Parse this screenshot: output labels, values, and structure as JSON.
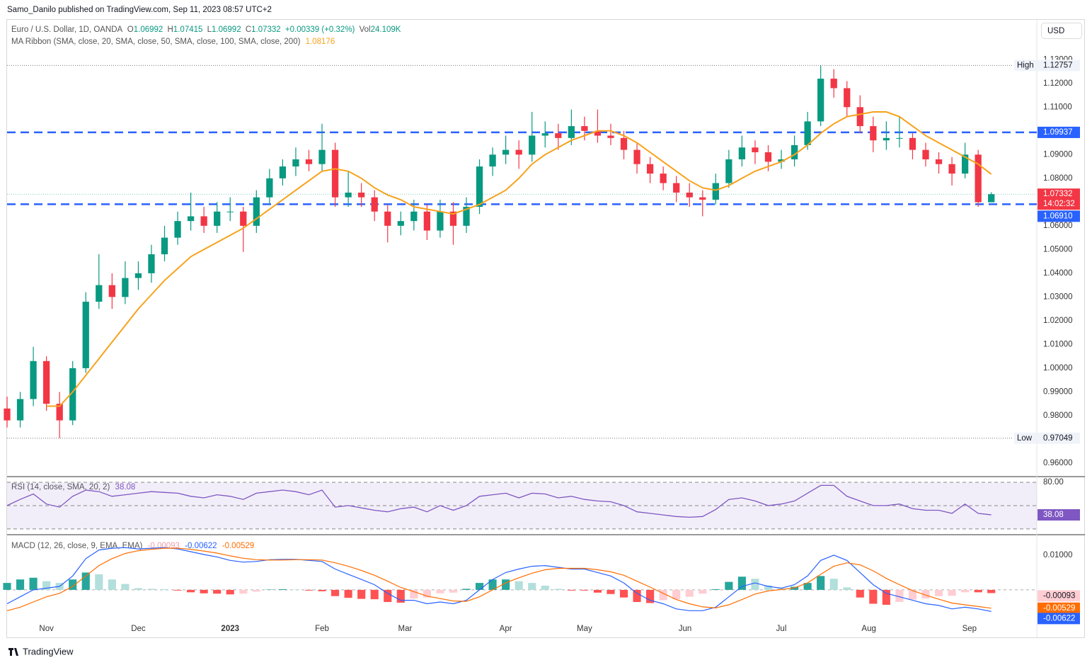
{
  "header": {
    "publisher": "Samo_Danilo published on TradingView.com, Sep 11, 2023 08:57 UTC+2",
    "currency": "USD",
    "brand": "TradingView"
  },
  "chart_data": [
    {
      "type": "candlestick",
      "title": "Euro / U.S. Dollar, 1D, OANDA",
      "ohlc_labels": [
        "O",
        "H",
        "L",
        "C"
      ],
      "change": "+0.00339 (+0.32%)",
      "volume_label": "Vol",
      "volume": "24.109K",
      "countdown": "14:02:32",
      "up_color": "#089981",
      "down_color": "#f23645",
      "x": [
        0,
        3,
        6,
        9,
        12,
        15,
        18,
        21,
        24,
        27,
        30,
        33,
        36,
        39,
        42,
        45,
        48,
        51,
        54,
        57,
        60,
        63,
        66,
        69,
        72,
        75,
        78,
        81,
        84,
        87,
        90,
        93,
        96,
        99,
        102,
        105,
        108,
        111,
        114,
        117,
        120,
        123,
        126,
        129,
        132,
        135,
        138,
        141,
        144,
        147,
        150,
        153,
        156,
        159,
        162,
        165,
        168,
        171,
        174,
        177,
        180,
        183,
        186,
        189,
        192,
        195,
        198,
        201,
        204,
        207,
        210,
        213,
        216,
        219,
        222,
        225
      ],
      "candles": [
        [
          0.983,
          0.988,
          0.975,
          0.978
        ],
        [
          0.978,
          0.99,
          0.975,
          0.987
        ],
        [
          0.987,
          1.009,
          0.984,
          1.003
        ],
        [
          1.003,
          1.005,
          0.982,
          0.985
        ],
        [
          0.985,
          0.99,
          0.97049,
          0.978
        ],
        [
          0.978,
          1.003,
          0.976,
          1.0
        ],
        [
          1.0,
          1.032,
          0.998,
          1.028
        ],
        [
          1.028,
          1.048,
          1.025,
          1.035
        ],
        [
          1.035,
          1.04,
          1.025,
          1.03
        ],
        [
          1.03,
          1.045,
          1.027,
          1.038
        ],
        [
          1.038,
          1.045,
          1.033,
          1.04
        ],
        [
          1.04,
          1.052,
          1.036,
          1.048
        ],
        [
          1.048,
          1.06,
          1.045,
          1.055
        ],
        [
          1.055,
          1.066,
          1.052,
          1.062
        ],
        [
          1.062,
          1.074,
          1.058,
          1.064
        ],
        [
          1.064,
          1.068,
          1.057,
          1.06
        ],
        [
          1.06,
          1.07,
          1.057,
          1.066
        ],
        [
          1.066,
          1.072,
          1.062,
          1.066
        ],
        [
          1.066,
          1.068,
          1.049,
          1.06
        ],
        [
          1.06,
          1.075,
          1.057,
          1.072
        ],
        [
          1.072,
          1.084,
          1.069,
          1.08
        ],
        [
          1.08,
          1.088,
          1.077,
          1.085
        ],
        [
          1.085,
          1.093,
          1.081,
          1.088
        ],
        [
          1.088,
          1.092,
          1.083,
          1.086
        ],
        [
          1.086,
          1.103,
          1.083,
          1.092
        ],
        [
          1.092,
          1.095,
          1.068,
          1.072
        ],
        [
          1.072,
          1.083,
          1.068,
          1.074
        ],
        [
          1.074,
          1.078,
          1.068,
          1.072
        ],
        [
          1.072,
          1.075,
          1.062,
          1.066
        ],
        [
          1.066,
          1.069,
          1.053,
          1.06
        ],
        [
          1.06,
          1.066,
          1.056,
          1.062
        ],
        [
          1.062,
          1.071,
          1.058,
          1.066
        ],
        [
          1.066,
          1.069,
          1.054,
          1.058
        ],
        [
          1.058,
          1.071,
          1.055,
          1.066
        ],
        [
          1.066,
          1.07,
          1.052,
          1.06
        ],
        [
          1.06,
          1.072,
          1.057,
          1.068
        ],
        [
          1.068,
          1.088,
          1.065,
          1.085
        ],
        [
          1.085,
          1.093,
          1.081,
          1.09
        ],
        [
          1.09,
          1.098,
          1.086,
          1.092
        ],
        [
          1.092,
          1.096,
          1.084,
          1.09
        ],
        [
          1.09,
          1.108,
          1.087,
          1.098
        ],
        [
          1.098,
          1.104,
          1.093,
          1.099
        ],
        [
          1.099,
          1.103,
          1.092,
          1.097
        ],
        [
          1.097,
          1.109,
          1.094,
          1.102
        ],
        [
          1.102,
          1.106,
          1.096,
          1.1
        ],
        [
          1.1,
          1.109,
          1.095,
          1.098
        ],
        [
          1.098,
          1.103,
          1.094,
          1.097
        ],
        [
          1.097,
          1.1,
          1.088,
          1.092
        ],
        [
          1.092,
          1.095,
          1.082,
          1.086
        ],
        [
          1.086,
          1.089,
          1.078,
          1.082
        ],
        [
          1.082,
          1.085,
          1.075,
          1.078
        ],
        [
          1.078,
          1.081,
          1.07,
          1.074
        ],
        [
          1.074,
          1.078,
          1.068,
          1.072
        ],
        [
          1.072,
          1.075,
          1.064,
          1.071
        ],
        [
          1.071,
          1.082,
          1.069,
          1.078
        ],
        [
          1.078,
          1.092,
          1.076,
          1.088
        ],
        [
          1.088,
          1.098,
          1.085,
          1.093
        ],
        [
          1.093,
          1.096,
          1.086,
          1.091
        ],
        [
          1.091,
          1.094,
          1.083,
          1.087
        ],
        [
          1.087,
          1.092,
          1.084,
          1.088
        ],
        [
          1.088,
          1.098,
          1.085,
          1.094
        ],
        [
          1.094,
          1.108,
          1.092,
          1.104
        ],
        [
          1.104,
          1.12757,
          1.102,
          1.122
        ],
        [
          1.122,
          1.126,
          1.114,
          1.118
        ],
        [
          1.118,
          1.121,
          1.106,
          1.11
        ],
        [
          1.11,
          1.115,
          1.099,
          1.102
        ],
        [
          1.102,
          1.106,
          1.091,
          1.096
        ],
        [
          1.096,
          1.104,
          1.092,
          1.097
        ],
        [
          1.097,
          1.106,
          1.093,
          1.097
        ],
        [
          1.097,
          1.099,
          1.088,
          1.092
        ],
        [
          1.092,
          1.095,
          1.085,
          1.088
        ],
        [
          1.088,
          1.091,
          1.082,
          1.086
        ],
        [
          1.086,
          1.089,
          1.077,
          1.082
        ],
        [
          1.082,
          1.095,
          1.08,
          1.09
        ],
        [
          1.09,
          1.092,
          1.068,
          1.06993
        ],
        [
          1.06992,
          1.07415,
          1.06992,
          1.07332
        ]
      ],
      "series": [
        {
          "name": "MA Ribbon (SMA, close, 20, SMA, close, 50, SMA, close, 100, SMA, close, 200)",
          "color": "#f7a21b",
          "values": [
            null,
            null,
            null,
            0.984,
            0.984,
            0.99,
            0.997,
            1.004,
            1.011,
            1.018,
            1.025,
            1.031,
            1.037,
            1.042,
            1.047,
            1.05,
            1.053,
            1.056,
            1.059,
            1.063,
            1.067,
            1.071,
            1.075,
            1.079,
            1.083,
            1.084,
            1.083,
            1.08,
            1.076,
            1.073,
            1.071,
            1.068,
            1.067,
            1.066,
            1.065,
            1.067,
            1.069,
            1.072,
            1.075,
            1.08,
            1.086,
            1.09,
            1.093,
            1.096,
            1.098,
            1.1,
            1.1,
            1.098,
            1.095,
            1.091,
            1.087,
            1.083,
            1.079,
            1.076,
            1.075,
            1.077,
            1.08,
            1.083,
            1.085,
            1.087,
            1.09,
            1.094,
            1.099,
            1.103,
            1.106,
            1.107,
            1.108,
            1.108,
            1.106,
            1.102,
            1.098,
            1.095,
            1.092,
            1.089,
            1.086,
            1.08176
          ]
        }
      ],
      "levels": [
        {
          "value": 1.09937,
          "label": "1.09937",
          "color": "#2962ff"
        },
        {
          "value": 1.0691,
          "label": "1.06910",
          "color": "#2962ff"
        }
      ],
      "extremes": [
        {
          "name": "High",
          "value": 1.12757
        },
        {
          "name": "Low",
          "value": 0.97049
        }
      ],
      "xlim": [
        0,
        235.4
      ],
      "xticks": [
        {
          "value": 9,
          "label": "Nov"
        },
        {
          "value": 30,
          "label": "Dec"
        },
        {
          "value": 51,
          "label": "2023"
        },
        {
          "value": 72,
          "label": "Feb"
        },
        {
          "value": 91,
          "label": "Mar"
        },
        {
          "value": 114,
          "label": "Apr"
        },
        {
          "value": 132,
          "label": "May"
        },
        {
          "value": 155,
          "label": "Jun"
        },
        {
          "value": 177,
          "label": "Jul"
        },
        {
          "value": 197,
          "label": "Aug"
        },
        {
          "value": 220,
          "label": "Sep"
        }
      ],
      "ylim": [
        0.9546,
        1.1468
      ],
      "yticks": [
        {
          "value": 0.96,
          "label": "0.96000"
        },
        {
          "value": 0.98,
          "label": "0.98000"
        },
        {
          "value": 0.99,
          "label": "0.99000"
        },
        {
          "value": 1.0,
          "label": "1.00000"
        },
        {
          "value": 1.01,
          "label": "1.01000"
        },
        {
          "value": 1.02,
          "label": "1.02000"
        },
        {
          "value": 1.03,
          "label": "1.03000"
        },
        {
          "value": 1.04,
          "label": "1.04000"
        },
        {
          "value": 1.05,
          "label": "1.05000"
        },
        {
          "value": 1.06,
          "label": "1.06000"
        },
        {
          "value": 1.08,
          "label": "1.08000"
        },
        {
          "value": 1.09,
          "label": "1.09000"
        },
        {
          "value": 1.11,
          "label": "1.11000"
        },
        {
          "value": 1.12,
          "label": "1.12000"
        },
        {
          "value": 1.13,
          "label": "1.13000"
        }
      ]
    },
    {
      "type": "line",
      "title": "RSI (14, close, SMA, 20, 2)",
      "color": "#7e57c2",
      "values": [
        50,
        58,
        65,
        52,
        48,
        62,
        70,
        68,
        62,
        64,
        66,
        68,
        67,
        66,
        62,
        60,
        64,
        62,
        58,
        66,
        68,
        70,
        68,
        64,
        70,
        48,
        50,
        47,
        44,
        42,
        46,
        48,
        42,
        50,
        44,
        50,
        62,
        64,
        66,
        60,
        66,
        65,
        60,
        62,
        58,
        56,
        55,
        50,
        42,
        40,
        38,
        36,
        35,
        36,
        45,
        58,
        60,
        56,
        50,
        52,
        56,
        66,
        76,
        76,
        62,
        56,
        50,
        50,
        52,
        46,
        44,
        44,
        40,
        52,
        40,
        38.08
      ],
      "levels": [
        80,
        50,
        20
      ],
      "ylim": [
        15.3,
        85.5
      ],
      "yticks": [
        {
          "value": 80,
          "label": "80.00"
        }
      ]
    },
    {
      "type": "macd",
      "title": "MACD (12, 26, close, 9, EMA, EMA)",
      "histogram": [
        0.002,
        0.003,
        0.0035,
        0.0025,
        0.002,
        0.003,
        0.005,
        0.0045,
        0.003,
        0.0017,
        0.0005,
        0.0003,
        0.0002,
        -0.0002,
        -0.0007,
        -0.001,
        -0.0011,
        -0.0013,
        -0.0011,
        -0.0005,
        0.0001,
        0.0002,
        0.0001,
        -0.0002,
        -0.0004,
        -0.0018,
        -0.0023,
        -0.0026,
        -0.0027,
        -0.0035,
        -0.0037,
        -0.0025,
        -0.0022,
        -0.001,
        -0.0008,
        0.0003,
        0.002,
        0.003,
        0.003,
        0.0025,
        0.002,
        0.0012,
        0.0003,
        -0.0002,
        -0.0002,
        -0.0008,
        -0.0012,
        -0.0022,
        -0.0035,
        -0.0038,
        -0.003,
        -0.0027,
        -0.002,
        -0.0011,
        0.0002,
        0.0023,
        0.0038,
        0.0032,
        0.0013,
        0.0004,
        0.0009,
        0.002,
        0.004,
        0.0032,
        0.0007,
        -0.0022,
        -0.004,
        -0.0043,
        -0.0035,
        -0.0028,
        -0.0025,
        -0.0018,
        -0.0017,
        -0.0007,
        -0.0007,
        -0.00093
      ],
      "histogram_colors": [
        "#26a69a",
        "#b2dfdb",
        "#ff5252",
        "#ffcdd2"
      ],
      "series": [
        {
          "color": "#2962ff",
          "values": [
            -0.004,
            -0.002,
            0.0,
            0.0005,
            0.001,
            0.004,
            0.009,
            0.0115,
            0.012,
            0.0122,
            0.0118,
            0.012,
            0.0122,
            0.0118,
            0.011,
            0.0102,
            0.0095,
            0.0085,
            0.008,
            0.0082,
            0.0087,
            0.0088,
            0.0088,
            0.0085,
            0.0082,
            0.006,
            0.0045,
            0.003,
            0.0015,
            -0.001,
            -0.003,
            -0.003,
            -0.004,
            -0.0035,
            -0.004,
            -0.003,
            0.0,
            0.003,
            0.005,
            0.006,
            0.0068,
            0.007,
            0.0065,
            0.006,
            0.006,
            0.005,
            0.004,
            0.002,
            -0.001,
            -0.003,
            -0.004,
            -0.0055,
            -0.006,
            -0.006,
            -0.005,
            -0.002,
            0.001,
            0.002,
            0.001,
            0.0005,
            0.0015,
            0.004,
            0.0085,
            0.01,
            0.0085,
            0.005,
            0.0015,
            -0.001,
            -0.002,
            -0.003,
            -0.004,
            -0.0045,
            -0.0055,
            -0.005,
            -0.0055,
            -0.00622
          ]
        },
        {
          "color": "#ff6d00",
          "values": [
            -0.006,
            -0.005,
            -0.0035,
            -0.002,
            -0.001,
            0.001,
            0.004,
            0.007,
            0.009,
            0.0105,
            0.0113,
            0.0117,
            0.012,
            0.012,
            0.0117,
            0.0112,
            0.0106,
            0.0098,
            0.0091,
            0.0087,
            0.0086,
            0.0086,
            0.0087,
            0.0087,
            0.0086,
            0.0078,
            0.0068,
            0.0056,
            0.0042,
            0.0025,
            0.0007,
            -0.0005,
            -0.0018,
            -0.0025,
            -0.0032,
            -0.0033,
            -0.002,
            0.0,
            0.002,
            0.0035,
            0.0048,
            0.0058,
            0.0062,
            0.0062,
            0.0062,
            0.0058,
            0.0052,
            0.0042,
            0.0025,
            0.0008,
            -0.001,
            -0.0028,
            -0.004,
            -0.0049,
            -0.0052,
            -0.0043,
            -0.0028,
            -0.0012,
            -0.0003,
            0.0001,
            0.0006,
            0.002,
            0.0045,
            0.0068,
            0.0078,
            0.0072,
            0.0055,
            0.0033,
            0.0015,
            -0.0002,
            -0.0015,
            -0.0027,
            -0.0038,
            -0.0043,
            -0.0048,
            -0.00529
          ]
        }
      ],
      "ylim": [
        -0.0137,
        0.0155
      ],
      "yticks": [
        {
          "value": 0.01,
          "label": "0.01000"
        }
      ]
    }
  ]
}
